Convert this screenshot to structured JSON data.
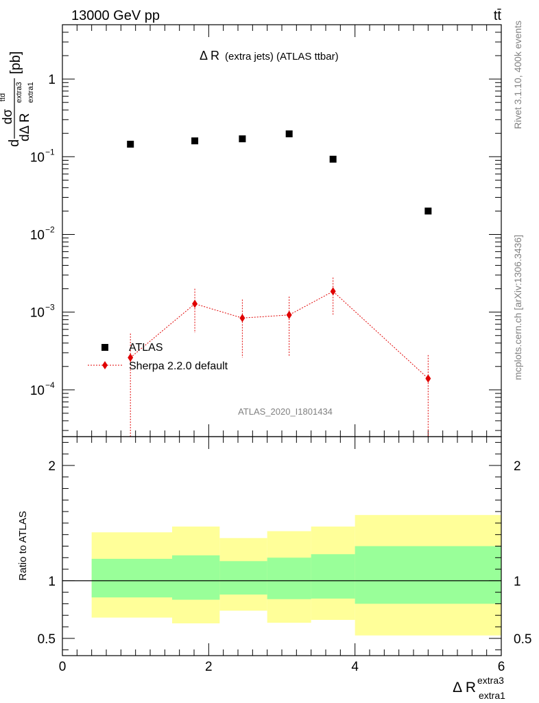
{
  "header": {
    "energy_label": "13000 GeV pp",
    "process_label": "tt̄"
  },
  "side_labels": {
    "rivet": "Rivet 3.1.10,  400k events",
    "mcplots": "mcplots.cern.ch [arXiv:1306.3436]"
  },
  "chart_data": [
    {
      "type": "scatter",
      "title_main": "Δ R",
      "title_rest": "(extra jets) (ATLAS ttbar)",
      "watermark": "ATLAS_2020_I1801434",
      "ylabel": {
        "prefix": "d",
        "numerator": "dσ",
        "numerator_sup": "ttd",
        "denominator": "dΔ R",
        "denominator_sub": "extra1",
        "denominator_sup": "extra3",
        "unit": "[pb]"
      },
      "y_scale": "log",
      "ylim": [
        2.5e-05,
        5
      ],
      "xlim": [
        0,
        6
      ],
      "y_ticks": [
        {
          "value": 1,
          "label": "1"
        },
        {
          "value": 0.1,
          "base": "10",
          "exp": "−1"
        },
        {
          "value": 0.01,
          "base": "10",
          "exp": "−2"
        },
        {
          "value": 0.001,
          "base": "10",
          "exp": "−3"
        },
        {
          "value": 0.0001,
          "base": "10",
          "exp": "−4"
        }
      ],
      "legend_position": "bottom-left",
      "series": [
        {
          "name": "ATLAS",
          "color": "#000000",
          "marker": "square",
          "x": [
            0.93,
            1.81,
            2.46,
            3.1,
            3.7,
            5.0
          ],
          "y": [
            0.145,
            0.16,
            0.17,
            0.197,
            0.093,
            0.02
          ]
        },
        {
          "name": "Sherpa 2.2.0 default",
          "color": "#e00000",
          "marker": "diamond",
          "line": "dotted",
          "x": [
            0.93,
            1.81,
            2.46,
            3.1,
            3.7,
            5.0
          ],
          "y": [
            0.00026,
            0.00128,
            0.00084,
            0.00092,
            0.00185,
            0.00014
          ],
          "y_low": [
            1e-07,
            0.00054,
            0.00026,
            0.00027,
            0.00093,
            1e-07
          ],
          "y_high": [
            0.00053,
            0.002,
            0.00145,
            0.00158,
            0.00278,
            0.00028
          ]
        }
      ]
    },
    {
      "type": "area",
      "ylabel": "Ratio to ATLAS",
      "xlabel_main": "Δ R",
      "xlabel_sup": "extra3",
      "xlabel_sub": "extra1",
      "xlim": [
        0,
        6
      ],
      "ylim": [
        0.35,
        2.25
      ],
      "x_ticks": [
        0,
        2,
        4,
        6
      ],
      "y_ticks": [
        0.5,
        1,
        2
      ],
      "reference_line": 1,
      "bands": [
        {
          "name": "outer",
          "color": "#ffff99",
          "bins": [
            {
              "x0": 0.4,
              "x1": 1.5,
              "lo": 0.68,
              "hi": 1.42
            },
            {
              "x0": 1.5,
              "x1": 2.15,
              "lo": 0.63,
              "hi": 1.47
            },
            {
              "x0": 2.15,
              "x1": 2.8,
              "lo": 0.74,
              "hi": 1.37
            },
            {
              "x0": 2.8,
              "x1": 3.4,
              "lo": 0.635,
              "hi": 1.43
            },
            {
              "x0": 3.4,
              "x1": 4.0,
              "lo": 0.66,
              "hi": 1.47
            },
            {
              "x0": 4.0,
              "x1": 6.0,
              "lo": 0.525,
              "hi": 1.57
            }
          ]
        },
        {
          "name": "inner",
          "color": "#99ff99",
          "bins": [
            {
              "x0": 0.4,
              "x1": 1.5,
              "lo": 0.855,
              "hi": 1.19
            },
            {
              "x0": 1.5,
              "x1": 2.15,
              "lo": 0.835,
              "hi": 1.22
            },
            {
              "x0": 2.15,
              "x1": 2.8,
              "lo": 0.88,
              "hi": 1.17
            },
            {
              "x0": 2.8,
              "x1": 3.4,
              "lo": 0.84,
              "hi": 1.2
            },
            {
              "x0": 3.4,
              "x1": 4.0,
              "lo": 0.845,
              "hi": 1.23
            },
            {
              "x0": 4.0,
              "x1": 6.0,
              "lo": 0.8,
              "hi": 1.3
            }
          ]
        }
      ]
    }
  ]
}
